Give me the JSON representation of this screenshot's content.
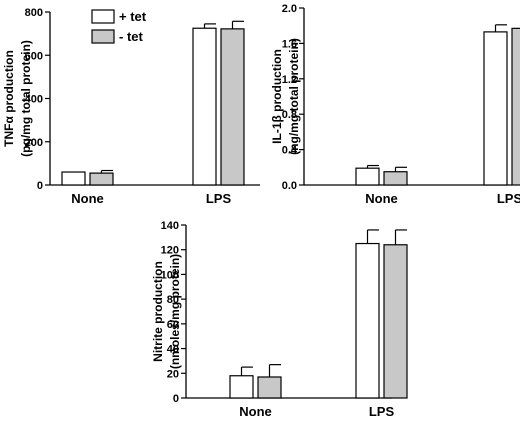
{
  "legend": [
    {
      "label": "+ tet",
      "color": "#ffffff"
    },
    {
      "label": "- tet",
      "color": "#c8c8c8"
    }
  ],
  "chart_data": [
    {
      "type": "bar",
      "ylabel_line1": "TNFα production",
      "ylabel_line2": "(pg/mg total protein)",
      "categories": [
        "None",
        "LPS"
      ],
      "ylim": [
        0,
        800
      ],
      "yticks": [
        "0",
        "200",
        "400",
        "600",
        "800"
      ],
      "series": [
        {
          "name": "+ tet",
          "values": [
            60,
            725
          ],
          "errors": [
            0,
            20
          ]
        },
        {
          "name": "- tet",
          "values": [
            55,
            722
          ],
          "errors": [
            12,
            35
          ]
        }
      ]
    },
    {
      "type": "bar",
      "ylabel_line1": "IL-1β production",
      "ylabel_line2": "(ng/mg total protein)",
      "categories": [
        "None",
        "LPS"
      ],
      "ylim": [
        0,
        2.0
      ],
      "yticks": [
        "0.0",
        "0.4",
        "0.8",
        "1.2",
        "1.6",
        "2.0"
      ],
      "series": [
        {
          "name": "+ tet",
          "values": [
            0.19,
            1.73
          ],
          "errors": [
            0.03,
            0.08
          ]
        },
        {
          "name": "- tet",
          "values": [
            0.15,
            1.77
          ],
          "errors": [
            0.05,
            0.07
          ]
        }
      ]
    },
    {
      "type": "bar",
      "ylabel_line1": "Nitrite production",
      "ylabel_line2": "(nmoles/mg protein)",
      "categories": [
        "None",
        "LPS"
      ],
      "ylim": [
        0,
        140
      ],
      "yticks": [
        "0",
        "20",
        "40",
        "60",
        "80",
        "100",
        "120",
        "140"
      ],
      "series": [
        {
          "name": "+ tet",
          "values": [
            18,
            125
          ],
          "errors": [
            7,
            11
          ]
        },
        {
          "name": "- tet",
          "values": [
            17,
            124
          ],
          "errors": [
            10,
            12
          ]
        }
      ]
    }
  ]
}
